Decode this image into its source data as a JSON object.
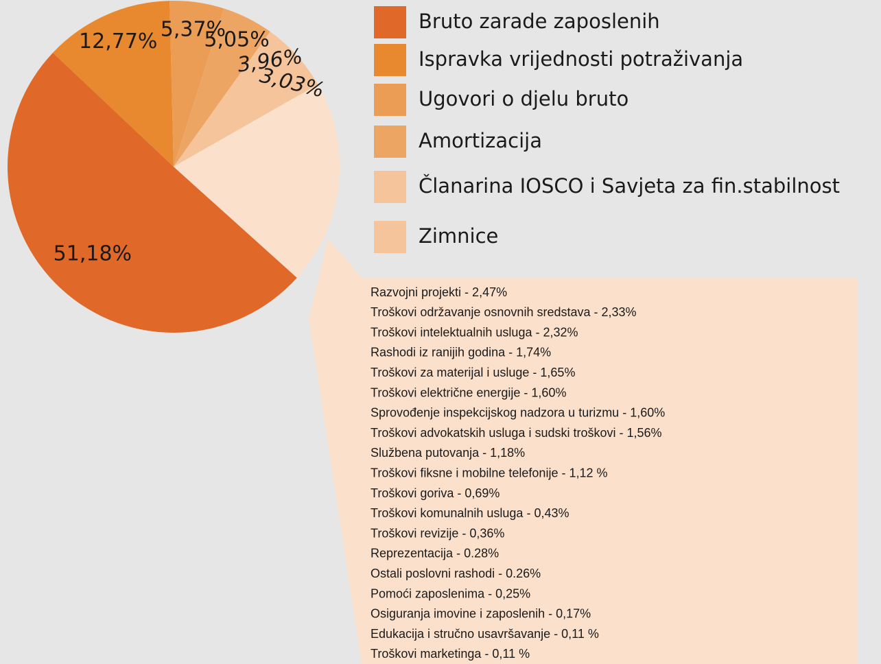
{
  "chart_data": {
    "type": "pie",
    "categories": [
      "Bruto zarade zaposlenih",
      "Ispravka vrijednosti potraživanja",
      "Ugovori o djelu bruto",
      "Amortizacija",
      "Članarina IOSCO i Savjeta za fin.stabilnost",
      "Zimnice"
    ],
    "values": [
      51.18,
      12.77,
      5.37,
      5.05,
      3.96,
      3.03
    ],
    "value_labels": [
      "51,18%",
      "12,77%",
      "5,37%",
      "5,05%",
      "3,96%",
      "3,03%"
    ],
    "colors": [
      "#e0692a",
      "#e8892f",
      "#eb9d55",
      "#eda564",
      "#f5c49a",
      "#f5c49a"
    ],
    "other_color": "#fbe0cb",
    "other_items": [
      {
        "text": "Razvojni projekti - 2,47%",
        "value": 2.47
      },
      {
        "text": "Troškovi održavanje osnovnih sredstava - 2,33%",
        "value": 2.33
      },
      {
        "text": "Troškovi intelektualnih usluga - 2,32%",
        "value": 2.32
      },
      {
        "text": "Rashodi iz ranijih godina - 1,74%",
        "value": 1.74
      },
      {
        "text": "Troškovi za materijal i usluge - 1,65%",
        "value": 1.65
      },
      {
        "text": "Troškovi električne energije - 1,60%",
        "value": 1.6
      },
      {
        "text": "Sprovođenje inspekcijskog nadzora u turizmu - 1,60%",
        "value": 1.6
      },
      {
        "text": "Troškovi advokatskih usluga i sudski troškovi - 1,56%",
        "value": 1.56
      },
      {
        "text": "Službena putovanja  - 1,18%",
        "value": 1.18
      },
      {
        "text": "Troškovi fiksne i mobilne telefonije - 1,12 %",
        "value": 1.12
      },
      {
        "text": "Troškovi goriva - 0,69%",
        "value": 0.69
      },
      {
        "text": "Troškovi komunalnih usluga - 0,43%",
        "value": 0.43
      },
      {
        "text": "Troškovi revizije - 0,36%",
        "value": 0.36
      },
      {
        "text": "Reprezentacija - 0.28%",
        "value": 0.28
      },
      {
        "text": "Ostali poslovni rashodi - 0.26%",
        "value": 0.26
      },
      {
        "text": "Pomoći zaposlenima - 0,25%",
        "value": 0.25
      },
      {
        "text": "Osiguranja imovine i zaposlenih - 0,17%",
        "value": 0.17
      },
      {
        "text": "Edukacija i stručno usavršavanje - 0,11 %",
        "value": 0.11
      },
      {
        "text": "Troškovi marketinga - 0,11 %",
        "value": 0.11
      }
    ]
  }
}
